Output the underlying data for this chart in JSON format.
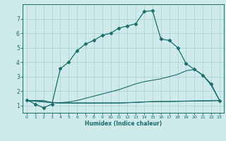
{
  "xlabel": "Humidex (Indice chaleur)",
  "background_color": "#ceeaea",
  "grid_color": "#aacfcf",
  "line_color": "#1a6b6b",
  "xlim": [
    -0.5,
    23.5
  ],
  "ylim": [
    0.5,
    8.0
  ],
  "xticks": [
    0,
    1,
    2,
    3,
    4,
    5,
    6,
    7,
    8,
    9,
    10,
    11,
    12,
    13,
    14,
    15,
    16,
    17,
    18,
    19,
    20,
    21,
    22,
    23
  ],
  "yticks": [
    1,
    2,
    3,
    4,
    5,
    6,
    7
  ],
  "line1_x": [
    0,
    1,
    2,
    3,
    4,
    5,
    6,
    7,
    8,
    9,
    10,
    11,
    12,
    13,
    14,
    15,
    16,
    17,
    18,
    19,
    20,
    21,
    22,
    23
  ],
  "line1_y": [
    1.4,
    1.1,
    0.85,
    1.1,
    3.55,
    4.0,
    4.8,
    5.25,
    5.5,
    5.85,
    6.0,
    6.35,
    6.5,
    6.65,
    7.5,
    7.55,
    5.6,
    5.5,
    5.0,
    3.9,
    3.5,
    3.1,
    2.5,
    1.35
  ],
  "line2_x": [
    0,
    1,
    2,
    3,
    4,
    5,
    6,
    7,
    8,
    9,
    10,
    11,
    12,
    13,
    14,
    15,
    16,
    17,
    18,
    19,
    20,
    21,
    22,
    23
  ],
  "line2_y": [
    1.35,
    1.35,
    1.35,
    1.2,
    1.2,
    1.25,
    1.35,
    1.5,
    1.65,
    1.8,
    1.95,
    2.1,
    2.3,
    2.5,
    2.65,
    2.75,
    2.85,
    3.0,
    3.15,
    3.4,
    3.5,
    3.1,
    2.4,
    1.35
  ],
  "line3_x": [
    0,
    1,
    2,
    3,
    4,
    5,
    6,
    7,
    8,
    9,
    10,
    11,
    12,
    13,
    14,
    15,
    16,
    17,
    18,
    19,
    20,
    21,
    22,
    23
  ],
  "line3_y": [
    1.35,
    1.3,
    1.25,
    1.2,
    1.18,
    1.17,
    1.17,
    1.17,
    1.17,
    1.17,
    1.18,
    1.18,
    1.2,
    1.22,
    1.25,
    1.27,
    1.28,
    1.29,
    1.3,
    1.31,
    1.32,
    1.33,
    1.33,
    1.35
  ],
  "line4_x": [
    0,
    1,
    2,
    3,
    4,
    5,
    6,
    7,
    8,
    9,
    10,
    11,
    12,
    13,
    14,
    15,
    16,
    17,
    18,
    19,
    20,
    21,
    22,
    23
  ],
  "line4_y": [
    1.35,
    1.32,
    1.28,
    1.22,
    1.18,
    1.18,
    1.18,
    1.18,
    1.18,
    1.18,
    1.18,
    1.18,
    1.2,
    1.22,
    1.25,
    1.27,
    1.28,
    1.28,
    1.29,
    1.3,
    1.31,
    1.32,
    1.33,
    1.35
  ]
}
